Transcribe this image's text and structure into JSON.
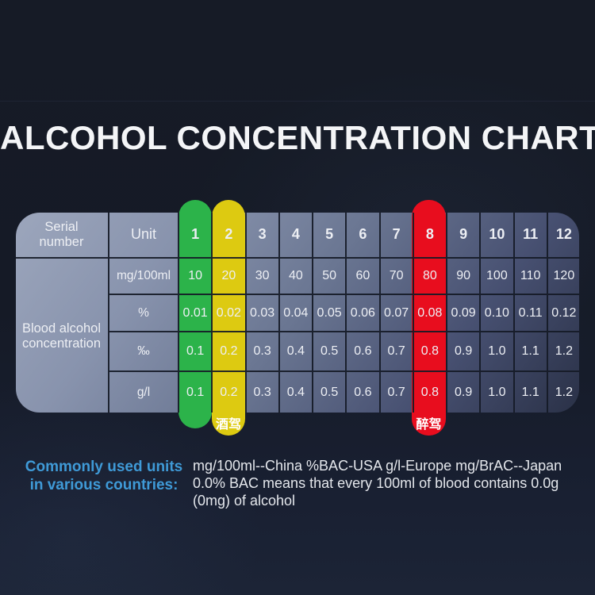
{
  "title": "ALCOHOL CONCENTRATION CHART",
  "colors": {
    "background": "#151a26",
    "table_gradient_start": "#9ca6bc",
    "table_gradient_end": "#2a3147",
    "grid_line": "#161b28",
    "green": "#2cb34a",
    "yellow": "#ddca11",
    "red": "#e80d1e",
    "cell_text": "#edeff4",
    "accent_blue": "#3f9ad7"
  },
  "table": {
    "header": {
      "serial_label": "Serial number",
      "unit_label": "Unit",
      "serial_numbers": [
        "1",
        "2",
        "3",
        "4",
        "5",
        "6",
        "7",
        "8",
        "9",
        "10",
        "11",
        "12"
      ]
    },
    "row_group_label": "Blood alcohol concentration",
    "rows": [
      {
        "unit": "mg/100ml",
        "values": [
          "10",
          "20",
          "30",
          "40",
          "50",
          "60",
          "70",
          "80",
          "90",
          "100",
          "110",
          "120"
        ]
      },
      {
        "unit": "%",
        "values": [
          "0.01",
          "0.02",
          "0.03",
          "0.04",
          "0.05",
          "0.06",
          "0.07",
          "0.08",
          "0.09",
          "0.10",
          "0.11",
          "0.12"
        ]
      },
      {
        "unit": "‰",
        "values": [
          "0.1",
          "0.2",
          "0.3",
          "0.4",
          "0.5",
          "0.6",
          "0.7",
          "0.8",
          "0.9",
          "1.0",
          "1.1",
          "1.2"
        ]
      },
      {
        "unit": "g/l",
        "values": [
          "0.1",
          "0.2",
          "0.3",
          "0.4",
          "0.5",
          "0.6",
          "0.7",
          "0.8",
          "0.9",
          "1.0",
          "1.1",
          "1.2"
        ]
      }
    ],
    "highlights": [
      {
        "column": "1",
        "color_key": "green",
        "label": ""
      },
      {
        "column": "2",
        "color_key": "yellow",
        "label": "酒驾"
      },
      {
        "column": "8",
        "color_key": "red",
        "label": "醉驾"
      }
    ]
  },
  "footer": {
    "label_line1": "Commonly used units",
    "label_line2": "in various countries:",
    "text_lines": [
      "mg/100ml--China %BAC-USA g/l-Europe mg/BrAC--Japan",
      "0.0% BAC means that every 100ml of blood contains 0.0g",
      "(0mg) of alcohol"
    ]
  },
  "chart_data": {
    "type": "table",
    "title": "ALCOHOL CONCENTRATION CHART",
    "categories": [
      "1",
      "2",
      "3",
      "4",
      "5",
      "6",
      "7",
      "8",
      "9",
      "10",
      "11",
      "12"
    ],
    "series": [
      {
        "name": "mg/100ml",
        "values": [
          10,
          20,
          30,
          40,
          50,
          60,
          70,
          80,
          90,
          100,
          110,
          120
        ]
      },
      {
        "name": "%",
        "values": [
          0.01,
          0.02,
          0.03,
          0.04,
          0.05,
          0.06,
          0.07,
          0.08,
          0.09,
          0.1,
          0.11,
          0.12
        ]
      },
      {
        "name": "‰",
        "values": [
          0.1,
          0.2,
          0.3,
          0.4,
          0.5,
          0.6,
          0.7,
          0.8,
          0.9,
          1.0,
          1.1,
          1.2
        ]
      },
      {
        "name": "g/l",
        "values": [
          0.1,
          0.2,
          0.3,
          0.4,
          0.5,
          0.6,
          0.7,
          0.8,
          0.9,
          1.0,
          1.1,
          1.2
        ]
      }
    ],
    "row_group_label": "Blood alcohol concentration",
    "annotations": [
      {
        "column": "1",
        "highlight": "green"
      },
      {
        "column": "2",
        "highlight": "yellow",
        "label": "酒驾"
      },
      {
        "column": "8",
        "highlight": "red",
        "label": "醉驾"
      }
    ]
  }
}
